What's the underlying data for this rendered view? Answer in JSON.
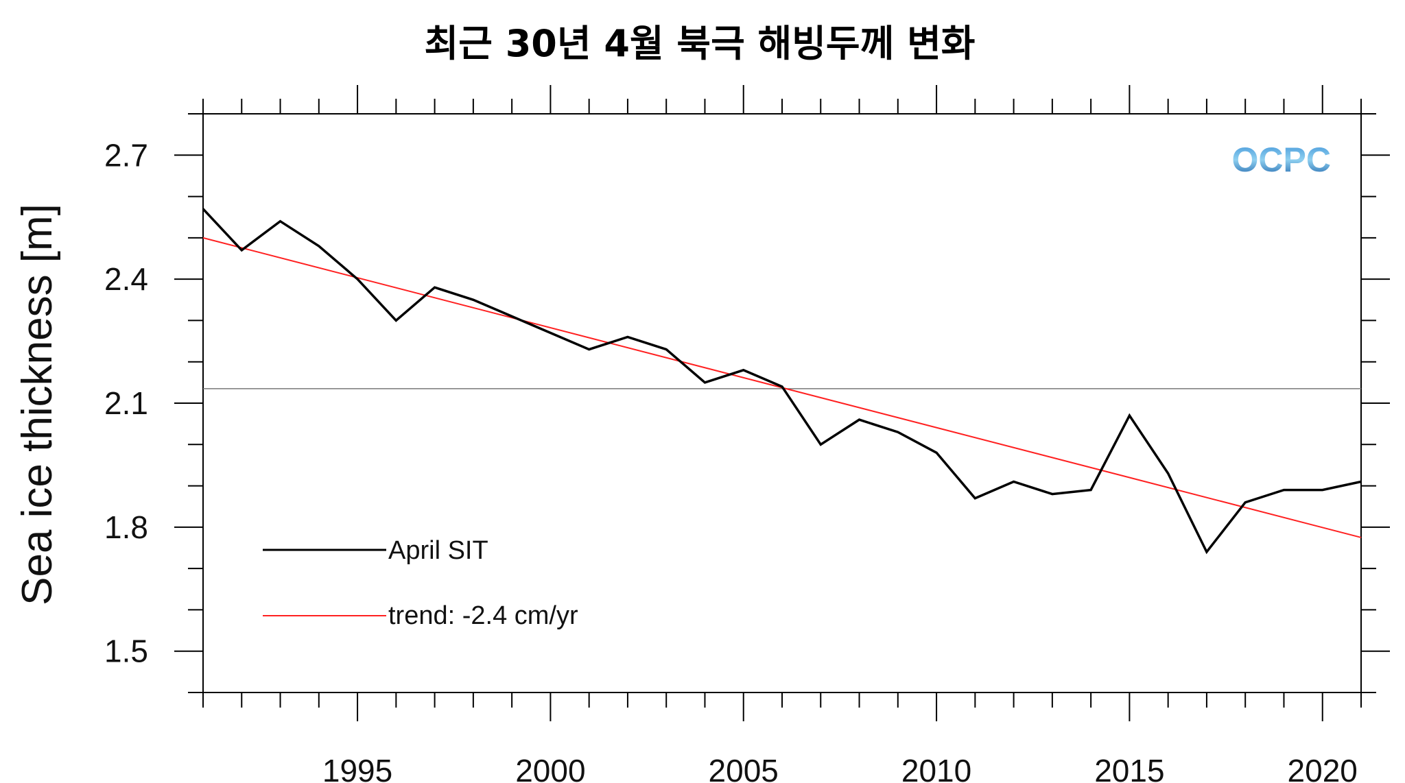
{
  "chart_data": {
    "type": "line",
    "title": "최근 30년 4월 북극 해빙두께 변화",
    "xlabel": "",
    "ylabel": "Sea ice thickness [m]",
    "xlim": [
      1991,
      2021
    ],
    "ylim": [
      1.4,
      2.8
    ],
    "x_ticks": [
      1995,
      2000,
      2005,
      2010,
      2015,
      2020
    ],
    "x_tick_labels": [
      "1995",
      "2000",
      "2005",
      "2010",
      "2015",
      "2020"
    ],
    "y_ticks": [
      1.5,
      1.8,
      2.1,
      2.4,
      2.7
    ],
    "y_tick_labels": [
      "1.5",
      "1.8",
      "2.1",
      "2.4",
      "2.7"
    ],
    "reference_line": 2.135,
    "x": [
      1991,
      1992,
      1993,
      1994,
      1995,
      1996,
      1997,
      1998,
      1999,
      2000,
      2001,
      2002,
      2003,
      2004,
      2005,
      2006,
      2007,
      2008,
      2009,
      2010,
      2011,
      2012,
      2013,
      2014,
      2015,
      2016,
      2017,
      2018,
      2019,
      2020,
      2021
    ],
    "series": [
      {
        "name": "April SIT",
        "color": "#000000",
        "values": [
          2.57,
          2.47,
          2.54,
          2.48,
          2.4,
          2.3,
          2.38,
          2.35,
          2.31,
          2.27,
          2.23,
          2.26,
          2.23,
          2.15,
          2.18,
          2.14,
          2.0,
          2.06,
          2.03,
          1.98,
          1.87,
          1.91,
          1.88,
          1.89,
          2.07,
          1.93,
          1.74,
          1.86,
          1.89,
          1.89,
          1.91
        ]
      },
      {
        "name": "trend: -2.4 cm/yr",
        "color": "#ff2020",
        "values": [
          2.5,
          1.775
        ],
        "x": [
          1991,
          2021
        ]
      }
    ],
    "legend_position": "lower-left",
    "legend_labels": [
      "April SIT",
      "trend: -2.4 cm/yr"
    ],
    "grid": false,
    "logo_text": "OCPC",
    "logo_color": "#1f6fb5"
  }
}
